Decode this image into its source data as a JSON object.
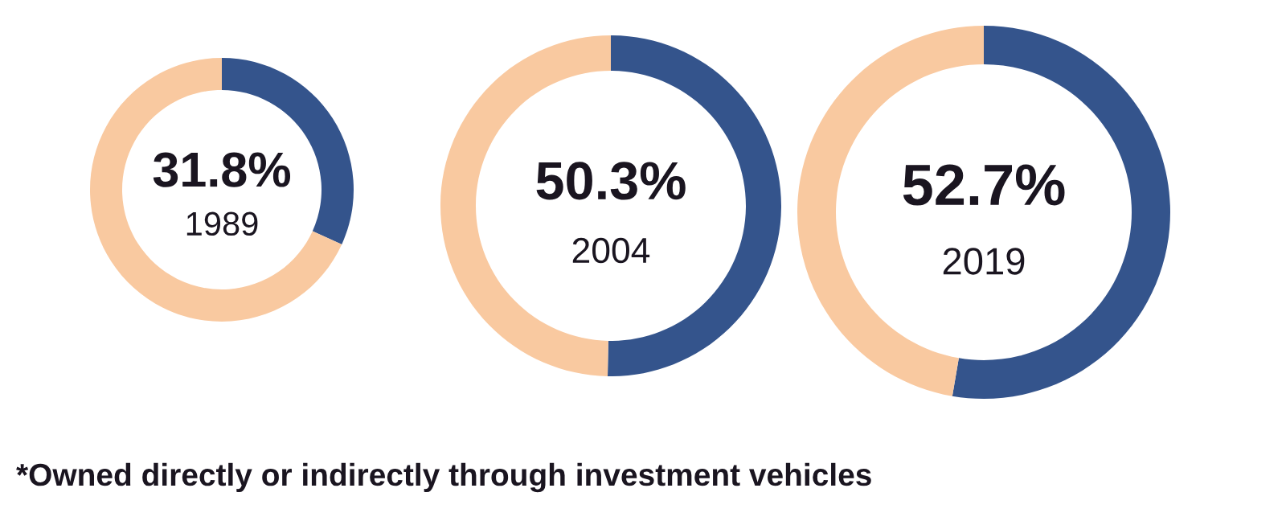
{
  "chart_data": [
    {
      "type": "donut",
      "title": "1989",
      "categories": [
        null,
        null
      ],
      "values": [
        31.8,
        68.2
      ],
      "colors": [
        "#34548c",
        "#f9c9a0"
      ],
      "value_labels": [
        "31.8%",
        null
      ],
      "annotations": [
        "*Owned directly or indirectly through investment vehicles"
      ]
    },
    {
      "type": "donut",
      "title": "2004",
      "categories": [
        null,
        null
      ],
      "values": [
        50.3,
        49.7
      ],
      "colors": [
        "#34548c",
        "#f9c9a0"
      ],
      "value_labels": [
        "50.3%",
        null
      ]
    },
    {
      "type": "donut",
      "title": "2019",
      "categories": [
        null,
        null
      ],
      "values": [
        52.7,
        47.3
      ],
      "colors": [
        "#34548c",
        "#f9c9a0"
      ],
      "value_labels": [
        "52.7%",
        null
      ]
    }
  ]
}
